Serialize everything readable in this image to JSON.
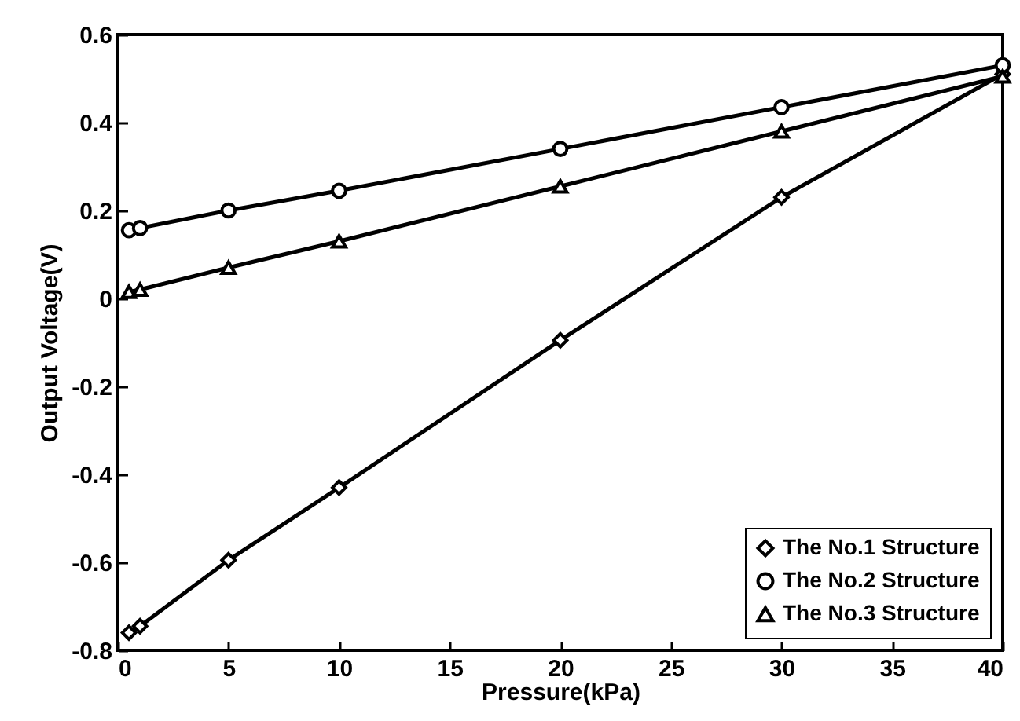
{
  "chart_data": {
    "type": "line",
    "xlabel": "Pressure(kPa)",
    "ylabel": "Output Voltage(V)",
    "x": [
      0.5,
      1,
      5,
      10,
      20,
      30,
      40
    ],
    "series": [
      {
        "name": "The No.1 Structure",
        "color": "#000000",
        "marker": "diamond",
        "values": [
          -0.76,
          -0.745,
          -0.595,
          -0.43,
          -0.095,
          0.23,
          0.51
        ]
      },
      {
        "name": "The No.2 Structure",
        "color": "#000000",
        "marker": "circle",
        "values": [
          0.155,
          0.16,
          0.2,
          0.245,
          0.34,
          0.435,
          0.53
        ]
      },
      {
        "name": "The No.3 Structure",
        "color": "#000000",
        "marker": "triangle",
        "values": [
          0.015,
          0.02,
          0.07,
          0.13,
          0.255,
          0.38,
          0.505
        ]
      }
    ],
    "xlim": [
      0,
      40
    ],
    "xticks": [
      0,
      5,
      10,
      15,
      20,
      25,
      30,
      35,
      40
    ],
    "ylim": [
      -0.8,
      0.6
    ],
    "yticks": [
      -0.8,
      -0.6,
      -0.4,
      -0.2,
      0,
      0.2,
      0.4,
      0.6
    ],
    "grid": false,
    "legend": "bottom right",
    "line_style": "solid"
  }
}
